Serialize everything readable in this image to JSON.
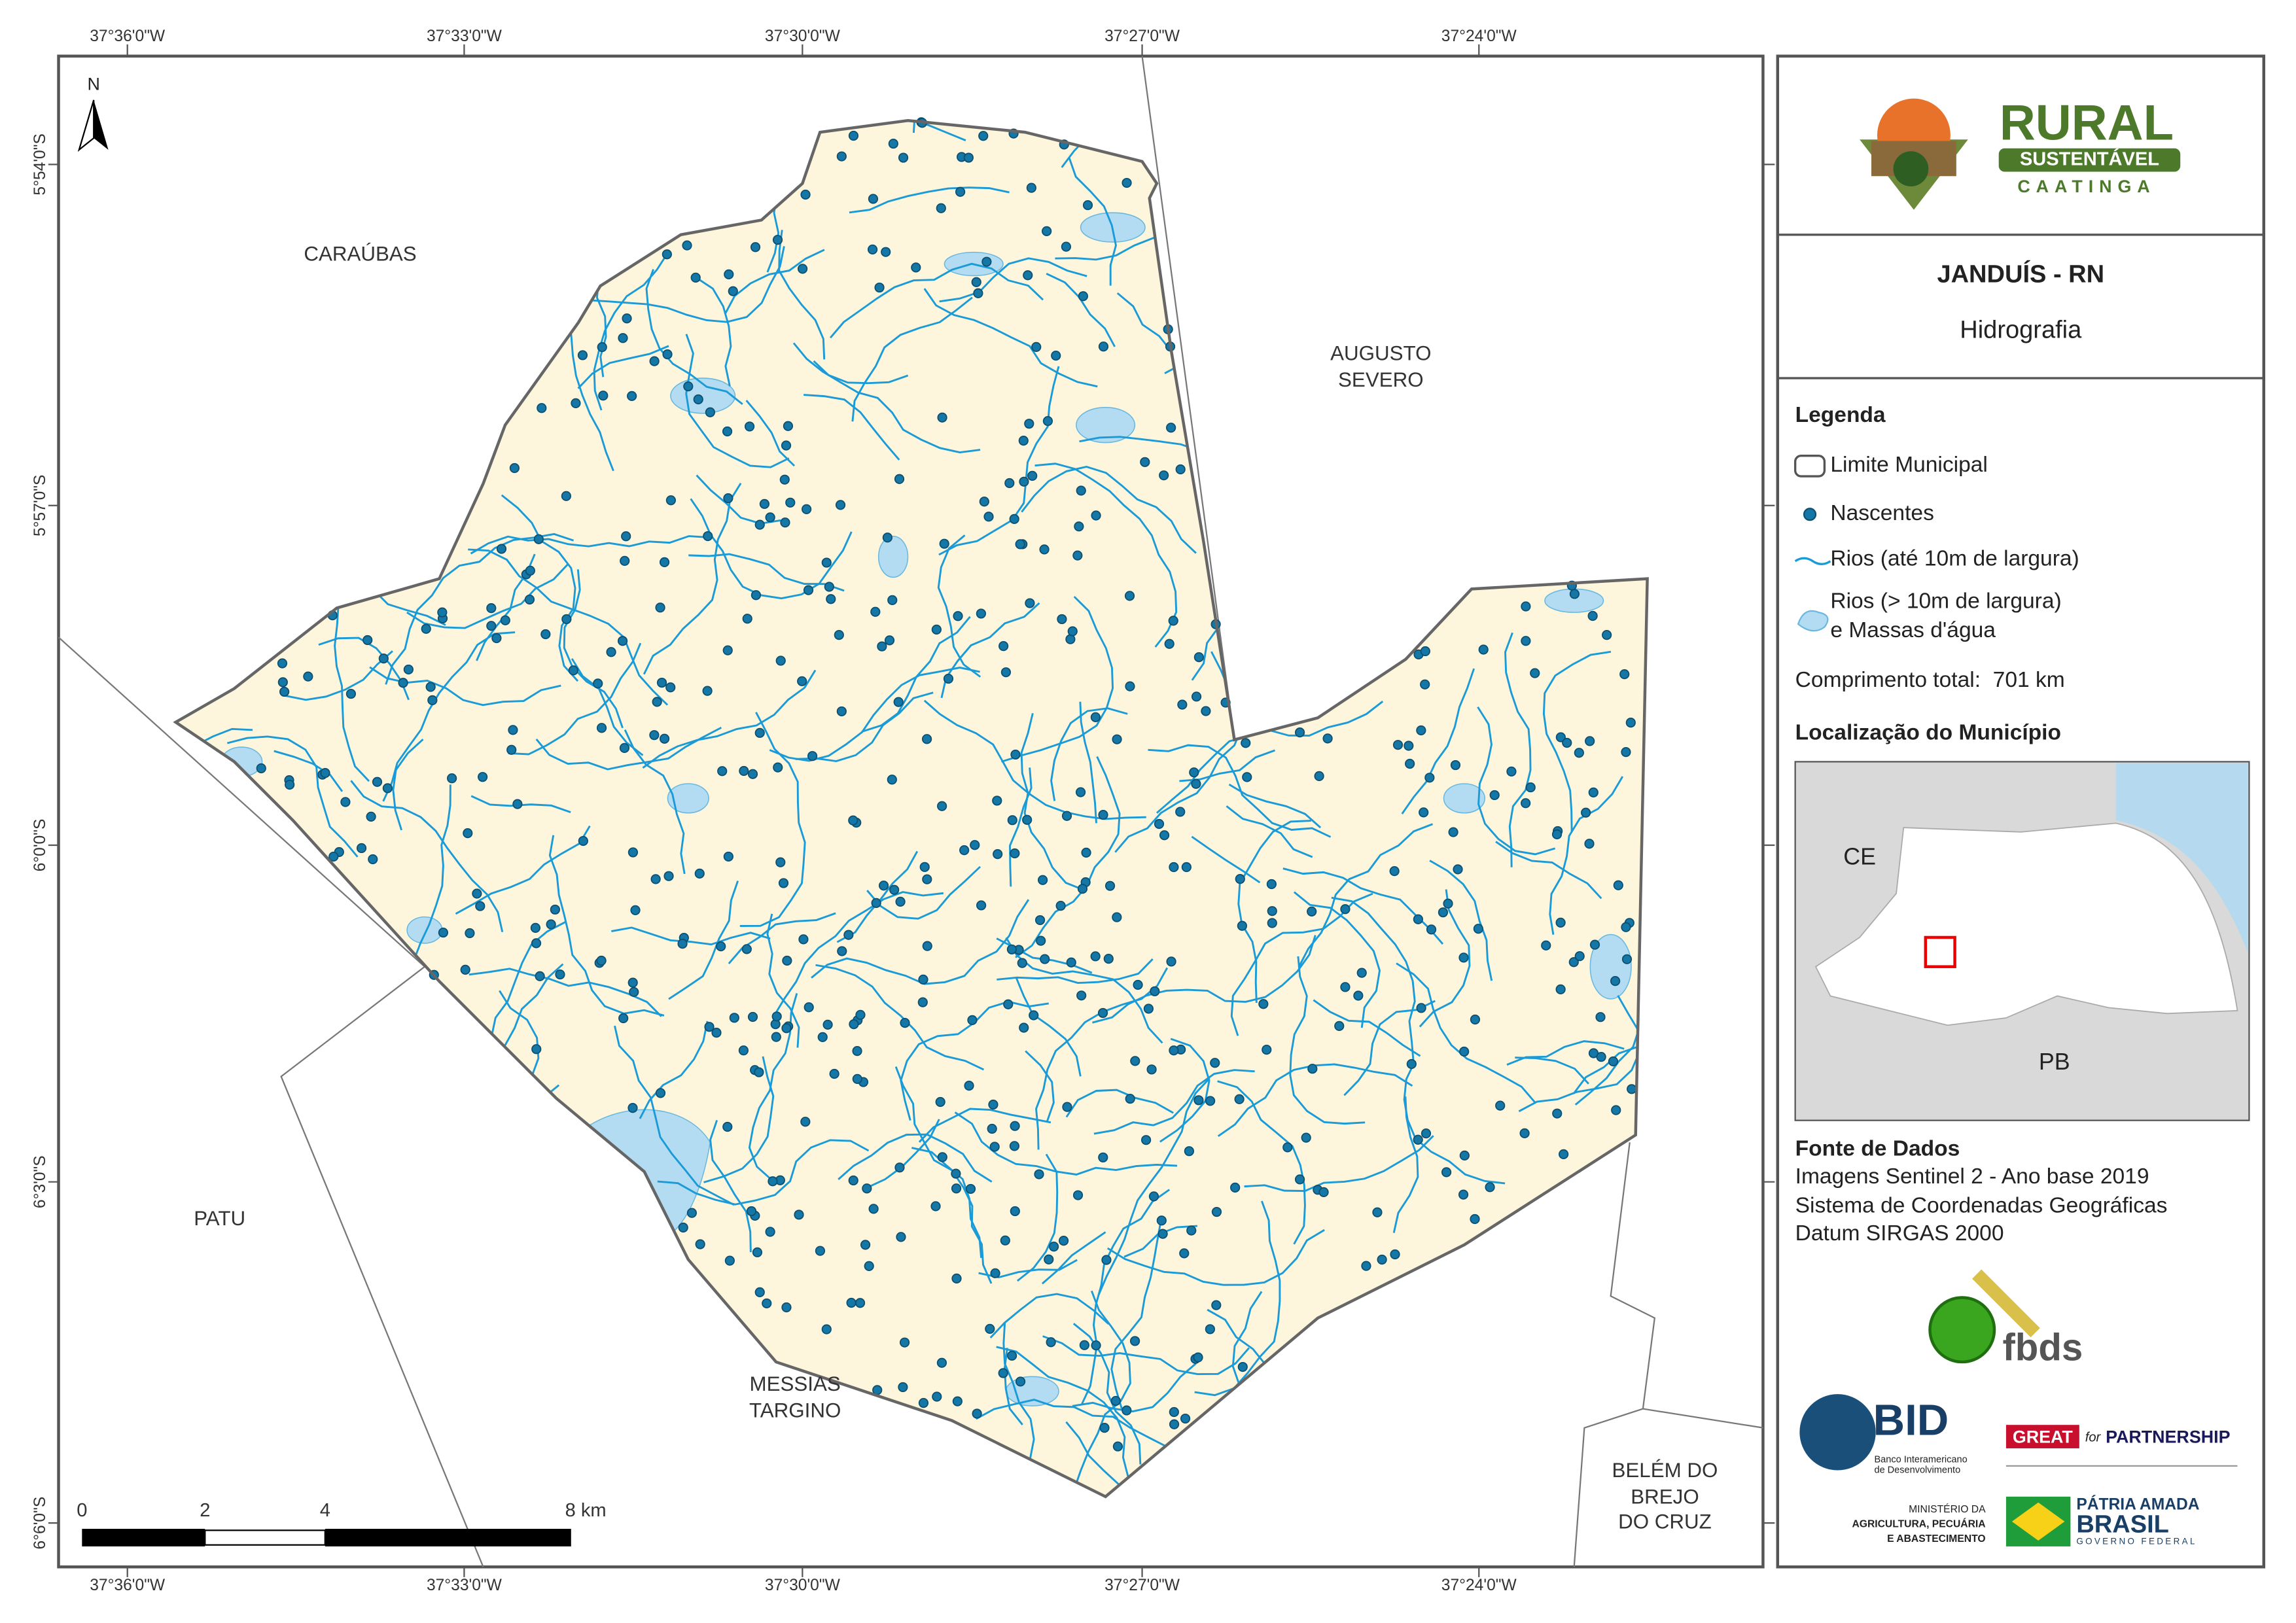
{
  "map": {
    "lon_labels": [
      "37°36'0\"W",
      "37°33'0\"W",
      "37°30'0\"W",
      "37°27'0\"W",
      "37°24'0\"W"
    ],
    "lat_labels": [
      "5°54'0\"S",
      "5°57'0\"S",
      "6°0'0\"S",
      "6°3'0\"S",
      "6°6'0\"S"
    ],
    "places": {
      "caraubas": [
        "CARAÚBAS"
      ],
      "augusto_severo": [
        "AUGUSTO",
        "SEVERO"
      ],
      "patu": [
        "PATU"
      ],
      "messias_targino": [
        "MESSIAS",
        "TARGINO"
      ],
      "belem": [
        "BELÉM DO",
        "BREJO",
        "DO CRUZ"
      ]
    },
    "north": "N",
    "scale_bar": [
      "0",
      "2",
      "4",
      "8 km"
    ]
  },
  "panel": {
    "logo": {
      "rural": "RURAL",
      "sustentavel": "SUSTENTÁVEL",
      "caatinga": "CAATINGA"
    },
    "title": "JANDUÍS - RN",
    "subtitle": "Hidrografia",
    "legend": {
      "title": "Legenda",
      "limit": "Limite Municipal",
      "springs": "Nascentes",
      "rivers_small": "Rios (até 10m de largura)",
      "rivers_large": [
        "Rios (> 10m de largura)",
        "e Massas d'água"
      ],
      "total": "Comprimento total:  701 km"
    },
    "location": {
      "title": "Localização do Município",
      "ce": "CE",
      "pb": "PB"
    },
    "sources": {
      "title": "Fonte de Dados",
      "lines": [
        "Imagens Sentinel 2 - Ano base 2019",
        "Sistema de Coordenadas Geográficas",
        "Datum SIRGAS 2000"
      ]
    },
    "partners": {
      "fbds": "fbds",
      "bid": "BID",
      "bid_name": [
        "Banco Interamericano",
        "de Desenvolvimento"
      ],
      "great": "GREAT",
      "for": "for",
      "partnership": "PARTNERSHIP",
      "ministry": [
        "MINISTÉRIO DA",
        "AGRICULTURA, PECUÁRIA",
        "E ABASTECIMENTO"
      ],
      "patria": "PÁTRIA AMADA",
      "brasil": "BRASIL",
      "governo": "GOVERNO FEDERAL"
    }
  }
}
